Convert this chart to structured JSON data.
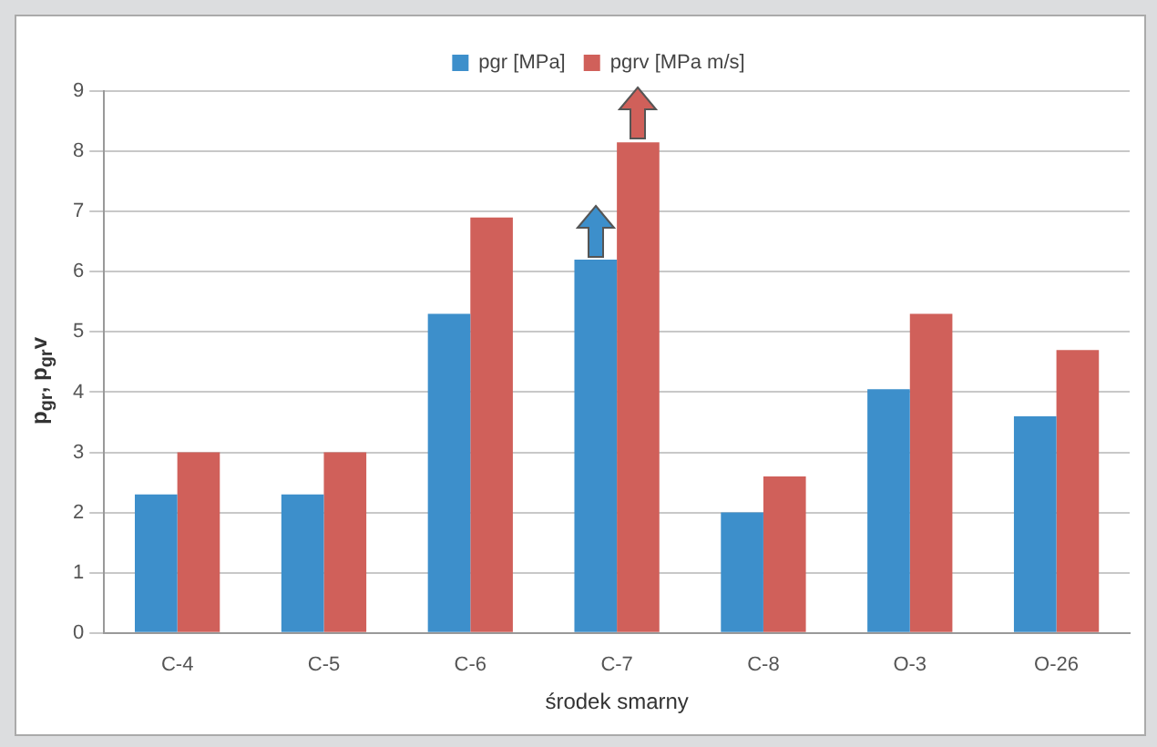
{
  "chart_data": {
    "type": "bar",
    "xlabel": "środek smarny",
    "ylabel": "p$_{gr}$, p$_{gr}$v",
    "categories": [
      "C-4",
      "C-5",
      "C-6",
      "C-7",
      "C-8",
      "O-3",
      "O-26"
    ],
    "series": [
      {
        "name": "pgr [MPa]",
        "color": "#3d8fcb",
        "values": [
          2.3,
          2.3,
          5.3,
          6.2,
          2.0,
          4.05,
          3.6
        ]
      },
      {
        "name": "pgrv [MPa m/s]",
        "color": "#d0605a",
        "values": [
          3.0,
          3.0,
          6.9,
          8.15,
          2.6,
          5.3,
          4.7
        ]
      }
    ],
    "ylim": [
      0,
      9
    ],
    "yticks": [
      0,
      1,
      2,
      3,
      4,
      5,
      6,
      7,
      8,
      9
    ],
    "grid": "y",
    "legend": "top"
  }
}
